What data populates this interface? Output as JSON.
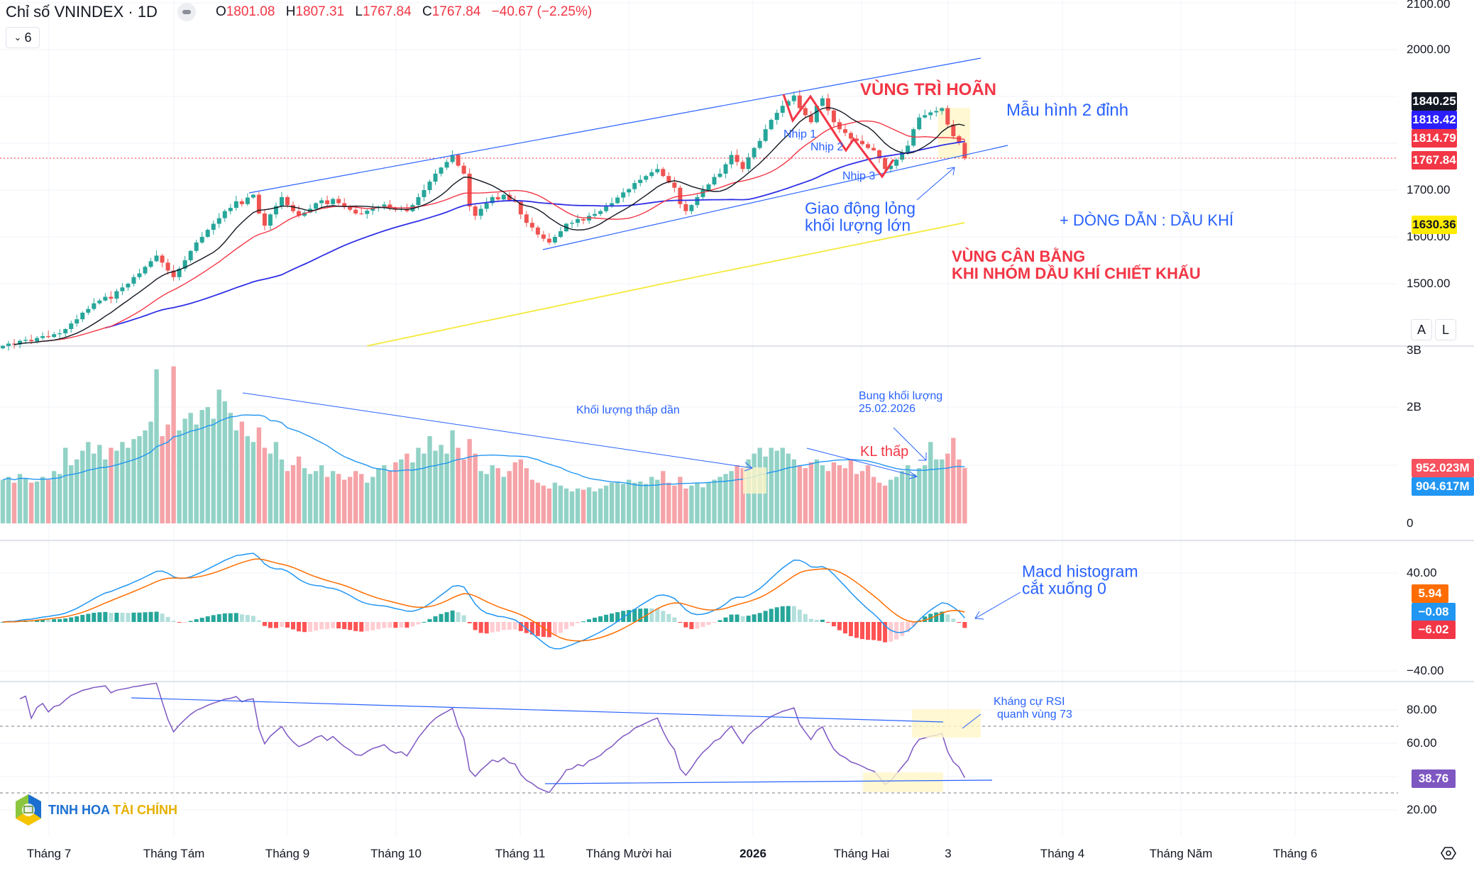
{
  "header": {
    "title": "Chỉ số VNINDEX · 1D",
    "o_label": "O",
    "o": "1801.08",
    "h_label": "H",
    "h": "1807.31",
    "l_label": "L",
    "l": "1767.84",
    "c_label": "C",
    "c": "1767.84",
    "change": "−40.67 (−2.25%)",
    "indicators_count": "6"
  },
  "price_axis": {
    "ticks": [
      "2100.00",
      "2000.00",
      "1700.00",
      "1600.00",
      "1500.00"
    ],
    "badges": [
      {
        "value": "1840.25",
        "color": "#131722"
      },
      {
        "value": "1818.42",
        "color": "#2b1eff"
      },
      {
        "value": "1814.79",
        "color": "#f23645"
      },
      {
        "value": "1767.84",
        "color": "#f23645"
      },
      {
        "value": "1630.36",
        "color": "#ffeb00"
      }
    ],
    "auto_label": "A",
    "log_label": "L"
  },
  "volume_axis": {
    "ticks": [
      "3B",
      "2B",
      "0"
    ],
    "badges": [
      {
        "value": "952.023M",
        "color": "#f7525f"
      },
      {
        "value": "904.617M",
        "color": "#2196f3"
      }
    ]
  },
  "macd_axis": {
    "ticks": [
      "40.00",
      "−40.00"
    ],
    "badges": [
      {
        "value": "5.94",
        "color": "#ff6d00"
      },
      {
        "value": "−0.08",
        "color": "#2196f3"
      },
      {
        "value": "−6.02",
        "color": "#f23645"
      }
    ]
  },
  "rsi_axis": {
    "ticks": [
      "80.00",
      "60.00",
      "20.00"
    ],
    "badges": [
      {
        "value": "38.76",
        "color": "#7e57c2"
      }
    ]
  },
  "time_axis": [
    "Tháng 7",
    "Tháng Tám",
    "Tháng 9",
    "Tháng 10",
    "Tháng 11",
    "Tháng Mười hai",
    "2026",
    "Tháng Hai",
    "3",
    "Tháng 4",
    "Tháng Năm",
    "Tháng 6"
  ],
  "annotations": {
    "delay_zone": "VÙNG TRÌ HOÃN",
    "double_top": "Mẫu hình 2 đỉnh",
    "wave1": "Nhịp 1",
    "wave2": "Nhịp 2",
    "wave3": "Nhịp 3",
    "loose_1": "Giao động lỏng",
    "loose_2": "khối lượng lớn",
    "leading": "+ DÒNG DẪN : DẦU KHÍ",
    "balance_1": "VÙNG CÂN BẰNG",
    "balance_2": "KHI NHÓM DẦU KHÍ CHIẾT KHẤU",
    "vol_declining": "Khối lượng thấp dần",
    "vol_burst_1": "Bung khối lượng",
    "vol_burst_2": "25.02.2026",
    "low_vol": "KL thấp",
    "macd_1": "Macd histogram",
    "macd_2": "cắt xuống 0",
    "rsi_1": "Kháng cự RSI",
    "rsi_2": "quanh vùng 73"
  },
  "logo": {
    "part1": "TINH HOA",
    "part2": "TÀI CHÍNH"
  },
  "colors": {
    "up": "#26a69a",
    "down": "#ef5350",
    "ma_fast": "#131722",
    "ma_mid": "#f23645",
    "ma_slow": "#2f2fe6",
    "ma_long": "#f5e93a",
    "macd": "#2196f3",
    "signal": "#ff6d00",
    "rsi": "#7e57c2",
    "annotation": "#2962ff"
  },
  "chart_data": {
    "type": "candlestick",
    "title": "Chỉ số VNINDEX · 1D",
    "price_range": [
      1360,
      2100
    ],
    "close": [
      1367,
      1372,
      1370,
      1378,
      1380,
      1377,
      1384,
      1388,
      1386,
      1392,
      1394,
      1403,
      1415,
      1424,
      1438,
      1446,
      1458,
      1464,
      1472,
      1468,
      1484,
      1492,
      1500,
      1514,
      1522,
      1536,
      1548,
      1560,
      1545,
      1528,
      1514,
      1532,
      1550,
      1570,
      1588,
      1600,
      1615,
      1628,
      1640,
      1655,
      1662,
      1676,
      1670,
      1684,
      1690,
      1650,
      1624,
      1648,
      1666,
      1685,
      1668,
      1655,
      1645,
      1652,
      1660,
      1672,
      1678,
      1670,
      1681,
      1672,
      1664,
      1658,
      1650,
      1649,
      1656,
      1662,
      1665,
      1669,
      1662,
      1658,
      1660,
      1655,
      1668,
      1685,
      1700,
      1718,
      1735,
      1748,
      1760,
      1775,
      1752,
      1735,
      1665,
      1645,
      1660,
      1672,
      1685,
      1680,
      1690,
      1678,
      1675,
      1648,
      1630,
      1620,
      1605,
      1596,
      1588,
      1600,
      1612,
      1628,
      1630,
      1638,
      1635,
      1645,
      1649,
      1655,
      1665,
      1672,
      1684,
      1695,
      1702,
      1715,
      1722,
      1730,
      1738,
      1745,
      1730,
      1716,
      1705,
      1670,
      1655,
      1668,
      1685,
      1700,
      1712,
      1728,
      1735,
      1755,
      1775,
      1760,
      1745,
      1770,
      1790,
      1805,
      1830,
      1850,
      1865,
      1880,
      1890,
      1902,
      1875,
      1860,
      1845,
      1880,
      1896,
      1870,
      1845,
      1830,
      1822,
      1810,
      1805,
      1798,
      1790,
      1785,
      1768,
      1745,
      1752,
      1765,
      1780,
      1795,
      1830,
      1855,
      1860,
      1866,
      1869,
      1875,
      1840,
      1815,
      1801,
      1767.84
    ],
    "volume_billions": [
      0.75,
      0.8,
      0.7,
      0.85,
      0.78,
      0.7,
      0.72,
      0.8,
      0.75,
      0.9,
      0.85,
      1.3,
      1.0,
      1.1,
      1.25,
      1.4,
      1.2,
      1.35,
      1.1,
      1.3,
      1.25,
      1.4,
      1.3,
      1.45,
      1.5,
      1.6,
      1.75,
      2.65,
      1.5,
      1.7,
      2.7,
      1.6,
      1.8,
      1.9,
      1.7,
      1.95,
      2.0,
      1.8,
      2.3,
      2.1,
      1.9,
      1.6,
      1.75,
      1.5,
      1.4,
      1.65,
      1.3,
      1.2,
      1.4,
      1.1,
      0.9,
      1.0,
      1.15,
      0.95,
      0.85,
      0.9,
      1.0,
      0.8,
      0.9,
      0.85,
      0.75,
      0.8,
      0.9,
      0.85,
      0.7,
      0.8,
      0.95,
      1.0,
      0.9,
      1.05,
      1.1,
      1.2,
      1.05,
      1.3,
      1.2,
      1.5,
      1.25,
      1.35,
      1.2,
      1.6,
      1.3,
      1.1,
      1.45,
      1.2,
      0.9,
      0.85,
      1.0,
      0.95,
      0.8,
      0.9,
      1.05,
      1.1,
      0.95,
      0.75,
      0.7,
      0.65,
      0.6,
      0.7,
      0.65,
      0.6,
      0.55,
      0.6,
      0.58,
      0.62,
      0.55,
      0.6,
      0.65,
      0.7,
      0.72,
      0.68,
      0.75,
      0.7,
      0.72,
      0.68,
      0.8,
      0.75,
      0.9,
      0.7,
      0.65,
      0.8,
      0.6,
      0.65,
      0.7,
      0.62,
      0.7,
      0.75,
      0.8,
      0.85,
      0.9,
      1.0,
      0.95,
      1.1,
      1.2,
      1.3,
      1.15,
      1.3,
      1.25,
      1.3,
      1.2,
      1.1,
      1.0,
      0.95,
      1.05,
      1.1,
      1.0,
      0.9,
      1.05,
      1.0,
      0.95,
      1.1,
      0.85,
      0.9,
      1.0,
      0.8,
      0.7,
      0.65,
      0.75,
      0.8,
      0.9,
      1.0,
      0.85,
      0.95,
      1.0,
      1.4,
      1.1,
      1.1,
      1.2,
      1.47,
      1.1,
      0.952
    ],
    "ma_long_points": [
      [
        64,
        1367
      ],
      [
        116,
        1500
      ],
      [
        169,
        1630.36
      ]
    ],
    "ma_periods": [
      10,
      20,
      50
    ],
    "macd_params": [
      12,
      26,
      9
    ],
    "rsi_period": 14,
    "rsi_levels": [
      70,
      30
    ],
    "volume_range_billions": [
      0,
      3
    ],
    "macd_range": [
      -40,
      40
    ]
  }
}
